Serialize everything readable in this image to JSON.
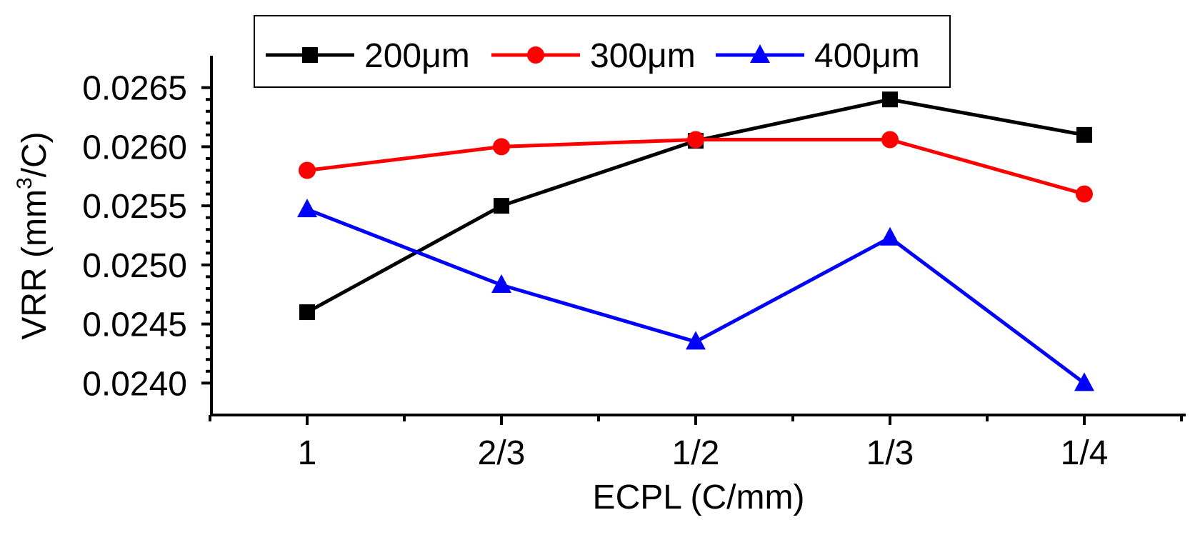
{
  "chart_data": {
    "type": "line",
    "categories": [
      "1",
      "2/3",
      "1/2",
      "1/3",
      "1/4"
    ],
    "series": [
      {
        "name": "200μm",
        "color": "#000000",
        "marker": "square",
        "values": [
          0.0246,
          0.0255,
          0.02605,
          0.0264,
          0.0261
        ]
      },
      {
        "name": "300μm",
        "color": "#ff0000",
        "marker": "circle",
        "values": [
          0.0258,
          0.026,
          0.02606,
          0.02606,
          0.0256
        ]
      },
      {
        "name": "400μm",
        "color": "#0000ff",
        "marker": "triangle",
        "values": [
          0.02547,
          0.02483,
          0.02435,
          0.02523,
          0.024
        ]
      }
    ],
    "xlabel": "ECPL (C/mm)",
    "ylabel_main": "VRR (mm",
    "ylabel_sup": "3",
    "ylabel_tail": "/C)",
    "yticks": [
      "0.0240",
      "0.0245",
      "0.0250",
      "0.0255",
      "0.0260",
      "0.0265"
    ],
    "ylim": [
      0.02373,
      0.02677
    ],
    "legend_position": "top",
    "grid": false
  }
}
